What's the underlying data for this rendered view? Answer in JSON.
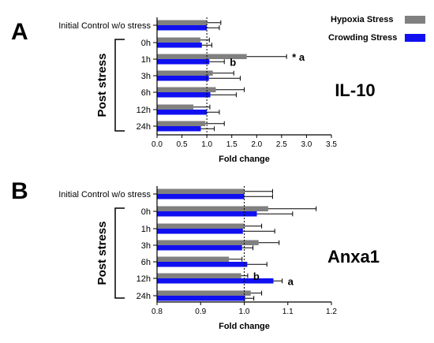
{
  "legend": [
    {
      "name": "Hypoxia Stress",
      "color": "#808080"
    },
    {
      "name": "Crowding Stress",
      "color": "#1010f0"
    }
  ],
  "group_label": "Post stress",
  "chart_data": [
    {
      "type": "bar",
      "orientation": "horizontal",
      "panel": "A",
      "label": "IL-10",
      "xlabel": "Fold change",
      "xlim": [
        0.0,
        3.5
      ],
      "xticks": [
        "0.0",
        "0.5",
        "1.0",
        "1.5",
        "2.0",
        "2.5",
        "3.0",
        "3.5"
      ],
      "reference_line": 1.0,
      "categories": [
        "Initial Control w/o stress",
        "0h",
        "1h",
        "3h",
        "6h",
        "12h",
        "24h"
      ],
      "series": [
        {
          "name": "Hypoxia Stress",
          "values": [
            1.0,
            0.87,
            1.8,
            1.12,
            1.18,
            0.73,
            0.97
          ],
          "errors": [
            0.28,
            0.18,
            0.8,
            0.42,
            0.57,
            0.33,
            0.38
          ]
        },
        {
          "name": "Crowding Stress",
          "values": [
            1.0,
            0.9,
            1.05,
            1.04,
            1.07,
            1.0,
            0.88
          ],
          "errors": [
            0.25,
            0.2,
            0.3,
            0.63,
            0.52,
            0.25,
            0.27
          ]
        }
      ],
      "annotations": [
        {
          "category": "1h",
          "series": "Hypoxia Stress",
          "text": "* a"
        },
        {
          "category": "1h",
          "series": "Crowding Stress",
          "text": "b"
        }
      ]
    },
    {
      "type": "bar",
      "orientation": "horizontal",
      "panel": "B",
      "label": "Anxa1",
      "xlabel": "Fold change",
      "xlim": [
        0.8,
        1.2
      ],
      "xticks": [
        "0.8",
        "0.9",
        "1.0",
        "1.1",
        "1.2"
      ],
      "reference_line": 1.0,
      "categories": [
        "Initial Control w/o stress",
        "0h",
        "1h",
        "3h",
        "6h",
        "12h",
        "24h"
      ],
      "series": [
        {
          "name": "Hypoxia Stress",
          "values": [
            1.0,
            1.055,
            1.0,
            1.033,
            0.965,
            0.993,
            1.015
          ],
          "errors": [
            0.065,
            0.11,
            0.04,
            0.047,
            0.03,
            0.015,
            0.025
          ]
        },
        {
          "name": "Crowding Stress",
          "values": [
            1.0,
            1.029,
            0.997,
            0.995,
            1.007,
            1.067,
            1.002
          ],
          "errors": [
            0.065,
            0.082,
            0.073,
            0.025,
            0.045,
            0.02,
            0.02
          ]
        }
      ],
      "annotations": [
        {
          "category": "12h",
          "series": "Hypoxia Stress",
          "text": "b"
        },
        {
          "category": "12h",
          "series": "Crowding Stress",
          "text": "a"
        }
      ]
    }
  ]
}
